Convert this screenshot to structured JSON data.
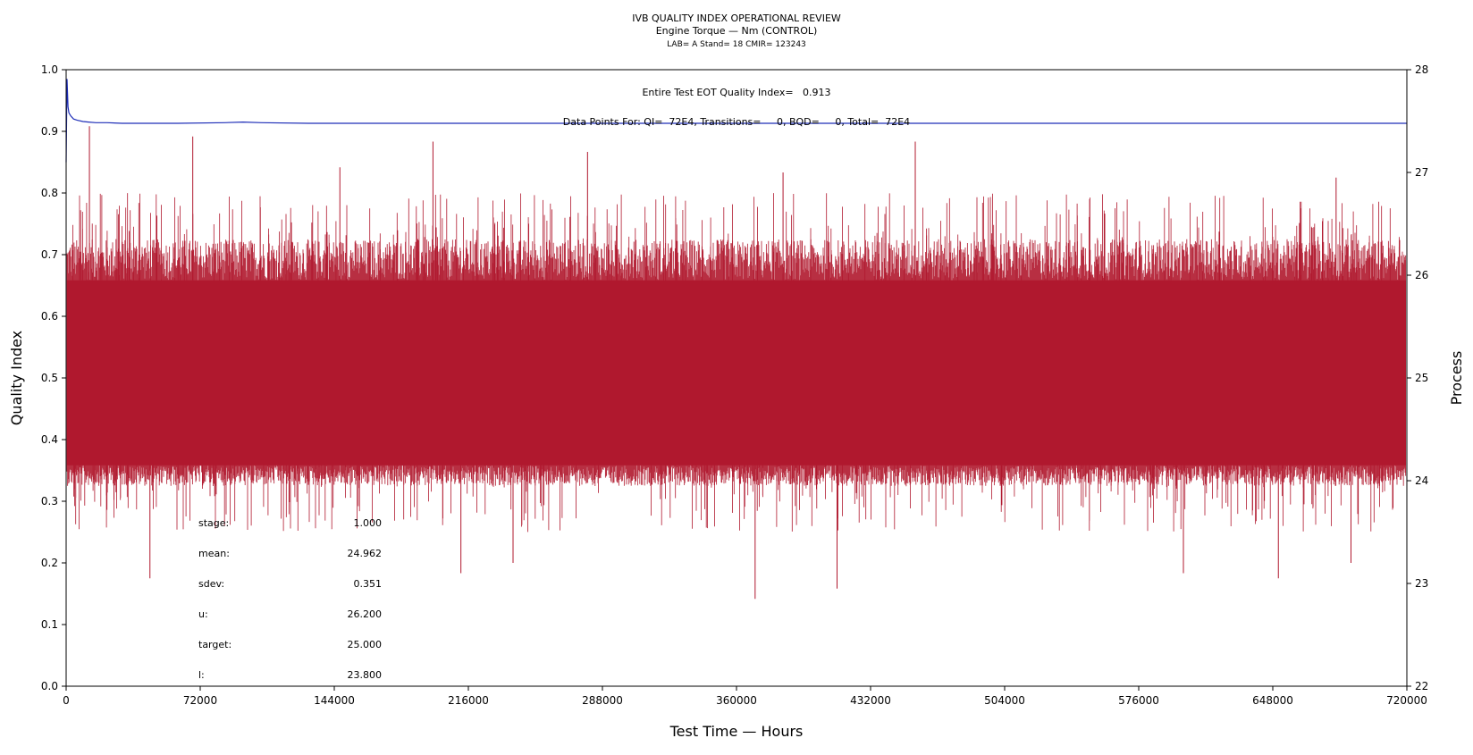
{
  "chart_data": {
    "type": "line",
    "title": "IVB QUALITY INDEX OPERATIONAL REVIEW",
    "subtitle": "Engine Torque — Nm (CONTROL)",
    "subtitle2": "LAB= A Stand= 18 CMIR= 123243",
    "xlabel": "Test Time — Hours",
    "ylabel_left": "Quality Index",
    "ylabel_right": "Process",
    "xlim": [
      0,
      720000
    ],
    "ylim_left": [
      0.0,
      1.0
    ],
    "ylim_right": [
      22,
      28
    ],
    "x_ticks": [
      0,
      72000,
      144000,
      216000,
      288000,
      360000,
      432000,
      504000,
      576000,
      648000,
      720000
    ],
    "y_ticks_left": [
      "0.0",
      "0.1",
      "0.2",
      "0.3",
      "0.4",
      "0.5",
      "0.6",
      "0.7",
      "0.8",
      "0.9",
      "1.0"
    ],
    "y_ticks_right": [
      "22",
      "23",
      "24",
      "25",
      "26",
      "27",
      "28"
    ],
    "annotations": {
      "qi_text": "Entire Test EOT Quality Index=   0.913",
      "points_text": "Data Points For: QI=  72E4, Transitions=     0, BQD=     0, Total=  72E4"
    },
    "stats": [
      {
        "label": "stage:",
        "value": "1.000"
      },
      {
        "label": "mean:",
        "value": "24.962"
      },
      {
        "label": "sdev:",
        "value": "0.351"
      },
      {
        "label": "u:",
        "value": "26.200"
      },
      {
        "label": "target:",
        "value": "25.000"
      },
      {
        "label": "l:",
        "value": "23.800"
      }
    ],
    "series": [
      {
        "axis": "left",
        "color": "#1f2fb8",
        "note": "quality index",
        "x": [
          0,
          500,
          1000,
          1500,
          2500,
          4000,
          6000,
          9000,
          12000,
          16000,
          22000,
          30000,
          45000,
          60000,
          85000,
          95000,
          105000,
          130000,
          200000,
          300000,
          400000,
          500000,
          600000,
          720000
        ],
        "y": [
          0.85,
          0.985,
          0.94,
          0.93,
          0.925,
          0.92,
          0.918,
          0.916,
          0.915,
          0.914,
          0.914,
          0.913,
          0.913,
          0.913,
          0.914,
          0.915,
          0.914,
          0.913,
          0.913,
          0.913,
          0.913,
          0.913,
          0.913,
          0.913
        ]
      },
      {
        "axis": "right",
        "color": "#b0182e",
        "note": "engine torque process",
        "band_core": [
          24.15,
          25.95
        ],
        "band_typical": [
          23.95,
          26.35
        ],
        "spikes_high": [
          {
            "x": 12500,
            "y": 27.45
          },
          {
            "x": 68000,
            "y": 27.35
          },
          {
            "x": 147000,
            "y": 27.05
          },
          {
            "x": 197000,
            "y": 27.3
          },
          {
            "x": 280000,
            "y": 27.2
          },
          {
            "x": 456000,
            "y": 27.3
          },
          {
            "x": 385000,
            "y": 27.0
          },
          {
            "x": 682000,
            "y": 26.95
          }
        ],
        "spikes_low": [
          {
            "x": 45000,
            "y": 23.05
          },
          {
            "x": 212000,
            "y": 23.1
          },
          {
            "x": 240000,
            "y": 23.2
          },
          {
            "x": 370000,
            "y": 22.85
          },
          {
            "x": 414000,
            "y": 22.95
          },
          {
            "x": 651000,
            "y": 23.05
          },
          {
            "x": 600000,
            "y": 23.1
          },
          {
            "x": 690000,
            "y": 23.2
          }
        ]
      }
    ]
  }
}
